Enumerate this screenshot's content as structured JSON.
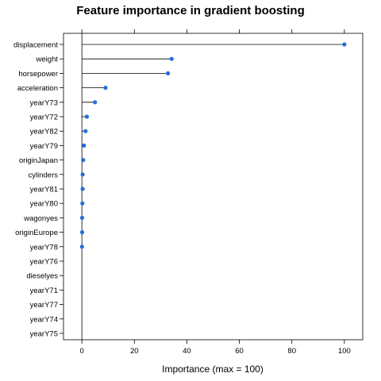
{
  "chart_data": {
    "type": "dotplot",
    "title": "Feature importance in gradient boosting",
    "xlabel": "Importance (max = 100)",
    "ylabel": "",
    "xlim": [
      -7,
      107
    ],
    "xticks": [
      0,
      20,
      40,
      60,
      80,
      100
    ],
    "categories": [
      "displacement",
      "weight",
      "horsepower",
      "acceleration",
      "yearY73",
      "yearY72",
      "yearY82",
      "yearY79",
      "originJapan",
      "cylinders",
      "yearY81",
      "yearY80",
      "wagonyes",
      "originEurope",
      "yearY78",
      "yearY76",
      "dieselyes",
      "yearY71",
      "yearY77",
      "yearY74",
      "yearY75"
    ],
    "values": [
      100,
      34.2,
      32.8,
      9.0,
      5.0,
      1.9,
      1.4,
      0.8,
      0.5,
      0.3,
      0.3,
      0.2,
      0.1,
      0.1,
      0.05,
      0,
      0,
      0,
      0,
      0,
      0
    ],
    "dot_color": "#1f6fe0"
  }
}
